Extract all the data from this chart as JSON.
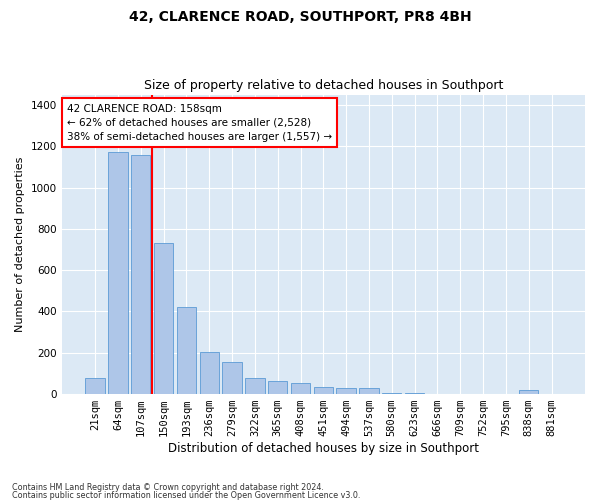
{
  "title": "42, CLARENCE ROAD, SOUTHPORT, PR8 4BH",
  "subtitle": "Size of property relative to detached houses in Southport",
  "xlabel": "Distribution of detached houses by size in Southport",
  "ylabel": "Number of detached properties",
  "categories": [
    "21sqm",
    "64sqm",
    "107sqm",
    "150sqm",
    "193sqm",
    "236sqm",
    "279sqm",
    "322sqm",
    "365sqm",
    "408sqm",
    "451sqm",
    "494sqm",
    "537sqm",
    "580sqm",
    "623sqm",
    "666sqm",
    "709sqm",
    "752sqm",
    "795sqm",
    "838sqm",
    "881sqm"
  ],
  "values": [
    80,
    1170,
    1155,
    730,
    420,
    205,
    155,
    80,
    65,
    55,
    35,
    30,
    30,
    5,
    5,
    0,
    0,
    0,
    0,
    20,
    0
  ],
  "bar_color": "#aec6e8",
  "bar_edge_color": "#5b9bd5",
  "property_line_label": "42 CLARENCE ROAD: 158sqm",
  "annotation_line1": "← 62% of detached houses are smaller (2,528)",
  "annotation_line2": "38% of semi-detached houses are larger (1,557) →",
  "annotation_box_color": "white",
  "annotation_box_edge_color": "red",
  "vline_color": "red",
  "vline_x_bar_index": 3,
  "ylim": [
    0,
    1450
  ],
  "yticks": [
    0,
    200,
    400,
    600,
    800,
    1000,
    1200,
    1400
  ],
  "background_color": "#dce9f5",
  "grid_color": "#ffffff",
  "footer_line1": "Contains HM Land Registry data © Crown copyright and database right 2024.",
  "footer_line2": "Contains public sector information licensed under the Open Government Licence v3.0.",
  "title_fontsize": 10,
  "subtitle_fontsize": 9,
  "xlabel_fontsize": 8.5,
  "ylabel_fontsize": 8,
  "tick_fontsize": 7.5,
  "annot_fontsize": 7.5
}
